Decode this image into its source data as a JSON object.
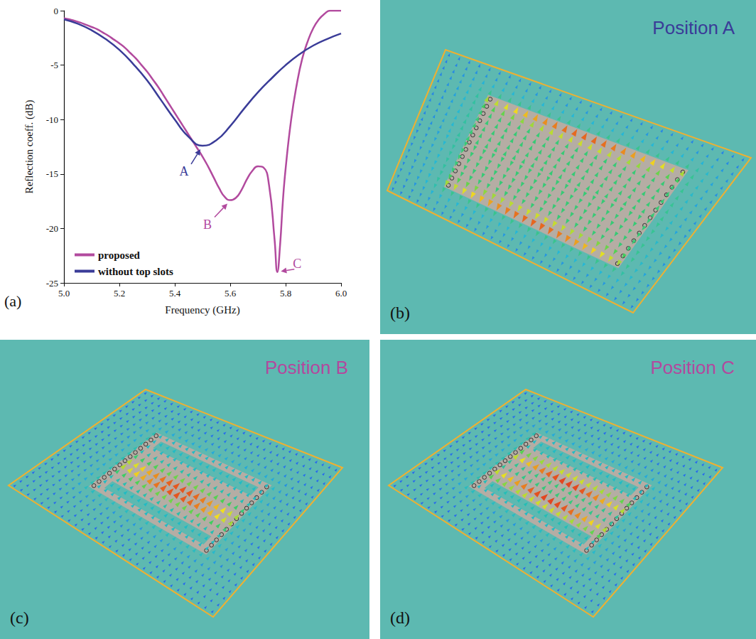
{
  "chart_data": {
    "type": "line",
    "letter": "(a)",
    "xlabel": "Frequency (GHz)",
    "ylabel": "Reflection coeff. (dB)",
    "xlim": [
      5,
      6
    ],
    "xticks": [
      {
        "value": 5,
        "label": "5.0"
      },
      {
        "value": 5.2,
        "label": "5.2"
      },
      {
        "value": 5.4,
        "label": "5.4"
      },
      {
        "value": 5.6,
        "label": "5.6"
      },
      {
        "value": 5.8,
        "label": "5.8"
      },
      {
        "value": 6,
        "label": "6.0"
      }
    ],
    "ylim": [
      -25,
      0
    ],
    "yticks": [
      -25,
      -20,
      -15,
      -10,
      -5,
      0
    ],
    "grid": false,
    "legend": "lower left",
    "series": [
      {
        "name": "proposed",
        "color": "#b24a9e",
        "x": [
          5.0,
          5.02,
          5.04,
          5.06,
          5.08,
          5.1,
          5.12,
          5.14,
          5.16,
          5.18,
          5.2,
          5.22,
          5.24,
          5.26,
          5.28,
          5.3,
          5.32,
          5.34,
          5.36,
          5.38,
          5.4,
          5.42,
          5.44,
          5.46,
          5.48,
          5.5,
          5.52,
          5.54,
          5.56,
          5.58,
          5.6,
          5.62,
          5.64,
          5.66,
          5.68,
          5.7,
          5.72,
          5.74,
          5.76,
          5.77,
          5.78,
          5.79,
          5.8,
          5.82,
          5.84,
          5.86,
          5.88,
          5.9,
          5.92,
          5.94,
          5.96,
          5.98,
          6.0
        ],
        "values": [
          -0.7,
          -0.8,
          -0.95,
          -1.1,
          -1.3,
          -1.5,
          -1.7,
          -2.0,
          -2.3,
          -2.65,
          -3.0,
          -3.4,
          -3.9,
          -4.4,
          -5.0,
          -5.6,
          -6.3,
          -7.0,
          -7.8,
          -8.6,
          -9.4,
          -10.2,
          -11.0,
          -11.8,
          -12.6,
          -13.4,
          -14.3,
          -15.3,
          -16.3,
          -17.1,
          -17.4,
          -17.2,
          -16.5,
          -15.5,
          -14.7,
          -14.3,
          -14.4,
          -16.0,
          -21.0,
          -24.0,
          -21.5,
          -17.5,
          -14.5,
          -10.0,
          -6.8,
          -4.4,
          -2.8,
          -1.6,
          -0.8,
          -0.3,
          0,
          0,
          0
        ]
      },
      {
        "name": "without top slots",
        "color": "#3a3c98",
        "x": [
          5.0,
          5.05,
          5.1,
          5.15,
          5.2,
          5.25,
          5.3,
          5.35,
          5.4,
          5.45,
          5.5,
          5.55,
          5.6,
          5.65,
          5.7,
          5.75,
          5.8,
          5.85,
          5.9,
          5.95,
          6.0
        ],
        "values": [
          -0.8,
          -1.2,
          -1.8,
          -2.6,
          -3.6,
          -4.9,
          -6.4,
          -8.2,
          -10.0,
          -11.6,
          -12.4,
          -11.9,
          -10.6,
          -9.0,
          -7.5,
          -6.2,
          -5.0,
          -4.0,
          -3.2,
          -2.6,
          -2.1
        ]
      }
    ],
    "annotations": [
      {
        "text": "A",
        "x": 5.5,
        "y": -12.4,
        "color": "#3a3c98"
      },
      {
        "text": "B",
        "x": 5.6,
        "y": -17.4,
        "color": "#b24a9e"
      },
      {
        "text": "C",
        "x": 5.77,
        "y": -24.0,
        "color": "#b24a9e"
      }
    ]
  },
  "panels": [
    {
      "letter": "(b)",
      "title": "Position A",
      "color": "#3a3c98"
    },
    {
      "letter": "(c)",
      "title": "Position B",
      "color": "#b24a9e"
    },
    {
      "letter": "(d)",
      "title": "Position C",
      "color": "#b24a9e"
    }
  ]
}
